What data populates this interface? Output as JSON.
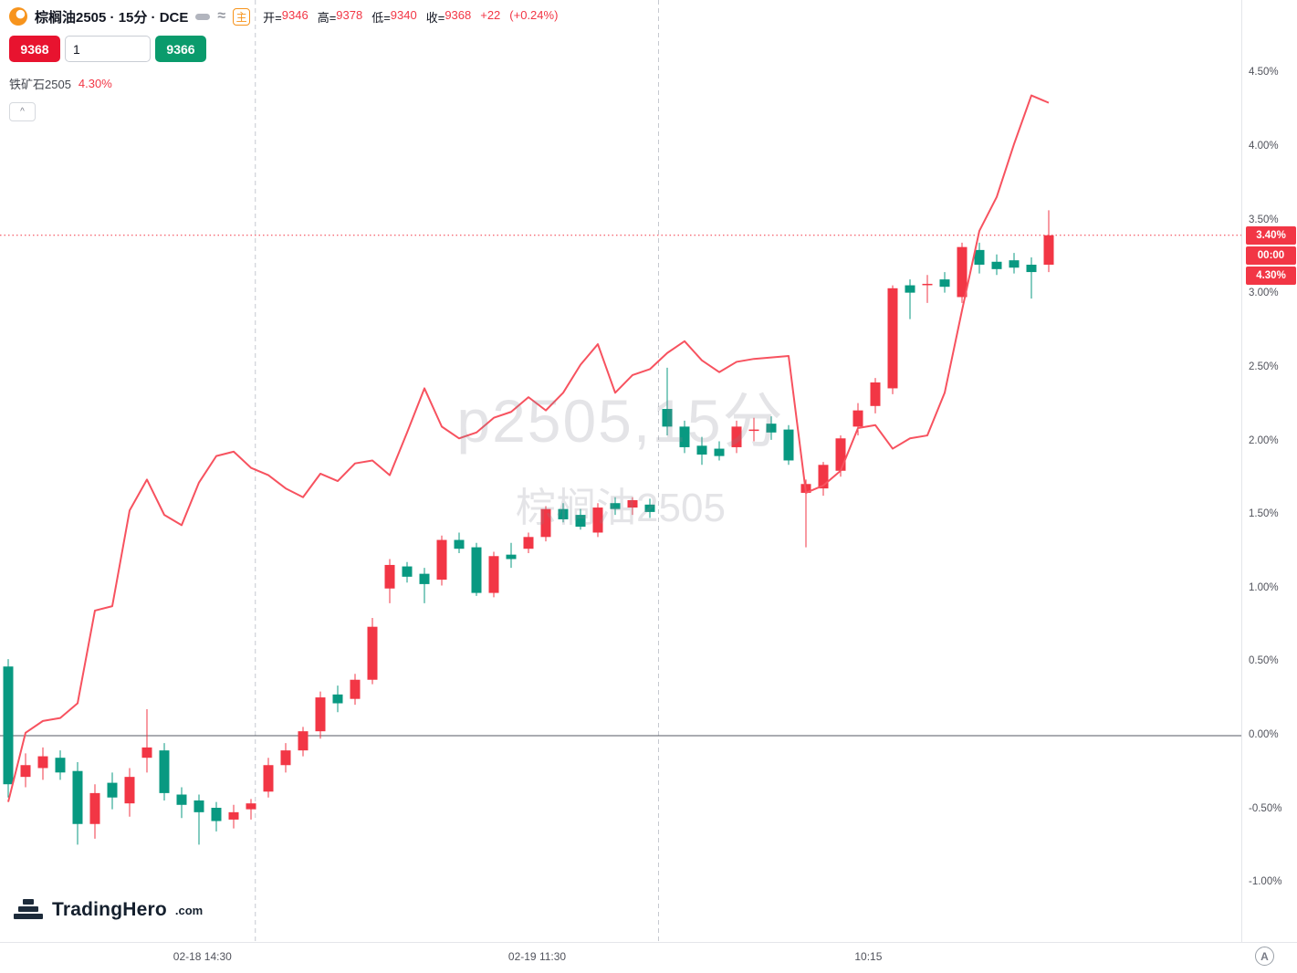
{
  "colors": {
    "up": "#f23645",
    "down": "#089981",
    "overlay_line": "#f7525f",
    "grid_dash": "#c6c9d0",
    "zero_line": "#565a63",
    "axis_text": "#51535c"
  },
  "header": {
    "title": "棕榈油2505 · 15分 · DCE",
    "main_badge": "主",
    "ohlc": {
      "open_label": "开=",
      "open": "9346",
      "high_label": "高=",
      "high": "9378",
      "low_label": "低=",
      "low": "9340",
      "close_label": "收=",
      "close": "9368",
      "change": "+22",
      "change_pct": "(+0.24%)"
    },
    "trade": {
      "sell": "9368",
      "quantity": "1",
      "buy": "9366"
    },
    "overlay_legend": {
      "name": "铁矿石2505",
      "value": "4.30%"
    },
    "collapse_glyph": "^"
  },
  "right_axis": {
    "labels": [
      "4.50%",
      "4.00%",
      "3.50%",
      "3.00%",
      "2.50%",
      "2.00%",
      "1.50%",
      "1.00%",
      "0.50%",
      "0.00%",
      "-0.50%",
      "-1.00%"
    ],
    "badges": {
      "last": "3.40%",
      "countdown": "00:00",
      "overlay": "4.30%"
    }
  },
  "watermark": {
    "line1": "p2505,15分",
    "line2": "棕榈油2505"
  },
  "branding": {
    "name": "TradingHero",
    "suffix": ".com"
  },
  "corner_button_label": "A",
  "chart_data": {
    "type": "candlestick",
    "unit": "percent_change",
    "title": "棕榈油2505 15分 (DCE) with 铁矿石2505 overlay",
    "ylim": [
      -1.4,
      5.0
    ],
    "grid": "session-breaks-only",
    "legend_position": "top-left",
    "last_close_pct": 3.4,
    "overlay_last_pct": 4.3,
    "session_breaks": [
      14.25,
      37.5
    ],
    "x_ticks": [
      {
        "label": "02-18 14:30",
        "index": 11.2
      },
      {
        "label": "02-19 11:30",
        "index": 30.5
      },
      {
        "label": "10:15",
        "index": 49.6
      }
    ],
    "series_names": {
      "candles": "棕榈油2505",
      "overlay": "铁矿石2505"
    },
    "candles": [
      [
        0.47,
        0.52,
        -0.42,
        -0.33
      ],
      [
        -0.28,
        -0.12,
        -0.35,
        -0.2
      ],
      [
        -0.22,
        -0.08,
        -0.3,
        -0.14
      ],
      [
        -0.15,
        -0.1,
        -0.3,
        -0.25
      ],
      [
        -0.24,
        -0.18,
        -0.74,
        -0.6
      ],
      [
        -0.6,
        -0.33,
        -0.7,
        -0.39
      ],
      [
        -0.32,
        -0.25,
        -0.5,
        -0.42
      ],
      [
        -0.46,
        -0.22,
        -0.55,
        -0.28
      ],
      [
        -0.15,
        0.18,
        -0.25,
        -0.08
      ],
      [
        -0.1,
        -0.05,
        -0.44,
        -0.39
      ],
      [
        -0.4,
        -0.35,
        -0.56,
        -0.47
      ],
      [
        -0.44,
        -0.4,
        -0.74,
        -0.52
      ],
      [
        -0.49,
        -0.45,
        -0.65,
        -0.58
      ],
      [
        -0.57,
        -0.47,
        -0.63,
        -0.52
      ],
      [
        -0.5,
        -0.43,
        -0.57,
        -0.46
      ],
      [
        -0.38,
        -0.15,
        -0.42,
        -0.2
      ],
      [
        -0.2,
        -0.05,
        -0.25,
        -0.1
      ],
      [
        -0.1,
        0.06,
        -0.14,
        0.03
      ],
      [
        0.03,
        0.3,
        -0.02,
        0.26
      ],
      [
        0.28,
        0.34,
        0.16,
        0.22
      ],
      [
        0.25,
        0.42,
        0.21,
        0.38
      ],
      [
        0.38,
        0.8,
        0.35,
        0.74
      ],
      [
        1.0,
        1.2,
        0.9,
        1.16
      ],
      [
        1.15,
        1.18,
        1.04,
        1.08
      ],
      [
        1.1,
        1.14,
        0.9,
        1.03
      ],
      [
        1.06,
        1.36,
        1.02,
        1.33
      ],
      [
        1.33,
        1.38,
        1.24,
        1.27
      ],
      [
        1.28,
        1.31,
        0.95,
        0.97
      ],
      [
        0.97,
        1.25,
        0.94,
        1.22
      ],
      [
        1.23,
        1.31,
        1.14,
        1.2
      ],
      [
        1.27,
        1.38,
        1.24,
        1.35
      ],
      [
        1.35,
        1.56,
        1.32,
        1.54
      ],
      [
        1.54,
        1.58,
        1.45,
        1.47
      ],
      [
        1.5,
        1.54,
        1.4,
        1.42
      ],
      [
        1.38,
        1.58,
        1.35,
        1.55
      ],
      [
        1.58,
        1.62,
        1.5,
        1.54
      ],
      [
        1.55,
        1.62,
        1.5,
        1.6
      ],
      [
        1.57,
        1.61,
        1.48,
        1.52
      ],
      [
        2.22,
        2.5,
        2.04,
        2.1
      ],
      [
        2.1,
        2.14,
        1.92,
        1.96
      ],
      [
        1.97,
        2.03,
        1.84,
        1.91
      ],
      [
        1.95,
        2.0,
        1.87,
        1.9
      ],
      [
        1.96,
        2.14,
        1.92,
        2.1
      ],
      [
        2.08,
        2.16,
        2.0,
        2.08
      ],
      [
        2.12,
        2.17,
        2.01,
        2.06
      ],
      [
        2.08,
        2.11,
        1.84,
        1.87
      ],
      [
        1.65,
        1.74,
        1.28,
        1.71
      ],
      [
        1.68,
        1.86,
        1.63,
        1.84
      ],
      [
        1.8,
        2.04,
        1.76,
        2.02
      ],
      [
        2.1,
        2.26,
        2.04,
        2.21
      ],
      [
        2.24,
        2.43,
        2.19,
        2.4
      ],
      [
        2.36,
        3.06,
        2.32,
        3.04
      ],
      [
        3.06,
        3.1,
        2.83,
        3.01
      ],
      [
        3.07,
        3.13,
        2.94,
        3.07
      ],
      [
        3.1,
        3.15,
        3.01,
        3.05
      ],
      [
        2.98,
        3.35,
        2.94,
        3.32
      ],
      [
        3.3,
        3.35,
        3.14,
        3.2
      ],
      [
        3.22,
        3.27,
        3.13,
        3.17
      ],
      [
        3.23,
        3.28,
        3.14,
        3.18
      ],
      [
        3.2,
        3.25,
        2.97,
        3.15
      ],
      [
        3.2,
        3.57,
        3.15,
        3.4
      ]
    ],
    "overlay_line": [
      -0.45,
      0.02,
      0.1,
      0.12,
      0.22,
      0.85,
      0.88,
      1.53,
      1.74,
      1.5,
      1.43,
      1.72,
      1.9,
      1.93,
      1.82,
      1.77,
      1.68,
      1.62,
      1.78,
      1.73,
      1.85,
      1.87,
      1.77,
      2.06,
      2.36,
      2.1,
      2.02,
      2.06,
      2.16,
      2.2,
      2.3,
      2.21,
      2.33,
      2.52,
      2.66,
      2.33,
      2.45,
      2.49,
      2.6,
      2.68,
      2.55,
      2.47,
      2.54,
      2.56,
      2.57,
      2.58,
      1.65,
      1.7,
      1.8,
      2.09,
      2.11,
      1.95,
      2.02,
      2.04,
      2.33,
      2.89,
      3.43,
      3.66,
      4.02,
      4.35,
      4.3
    ]
  }
}
